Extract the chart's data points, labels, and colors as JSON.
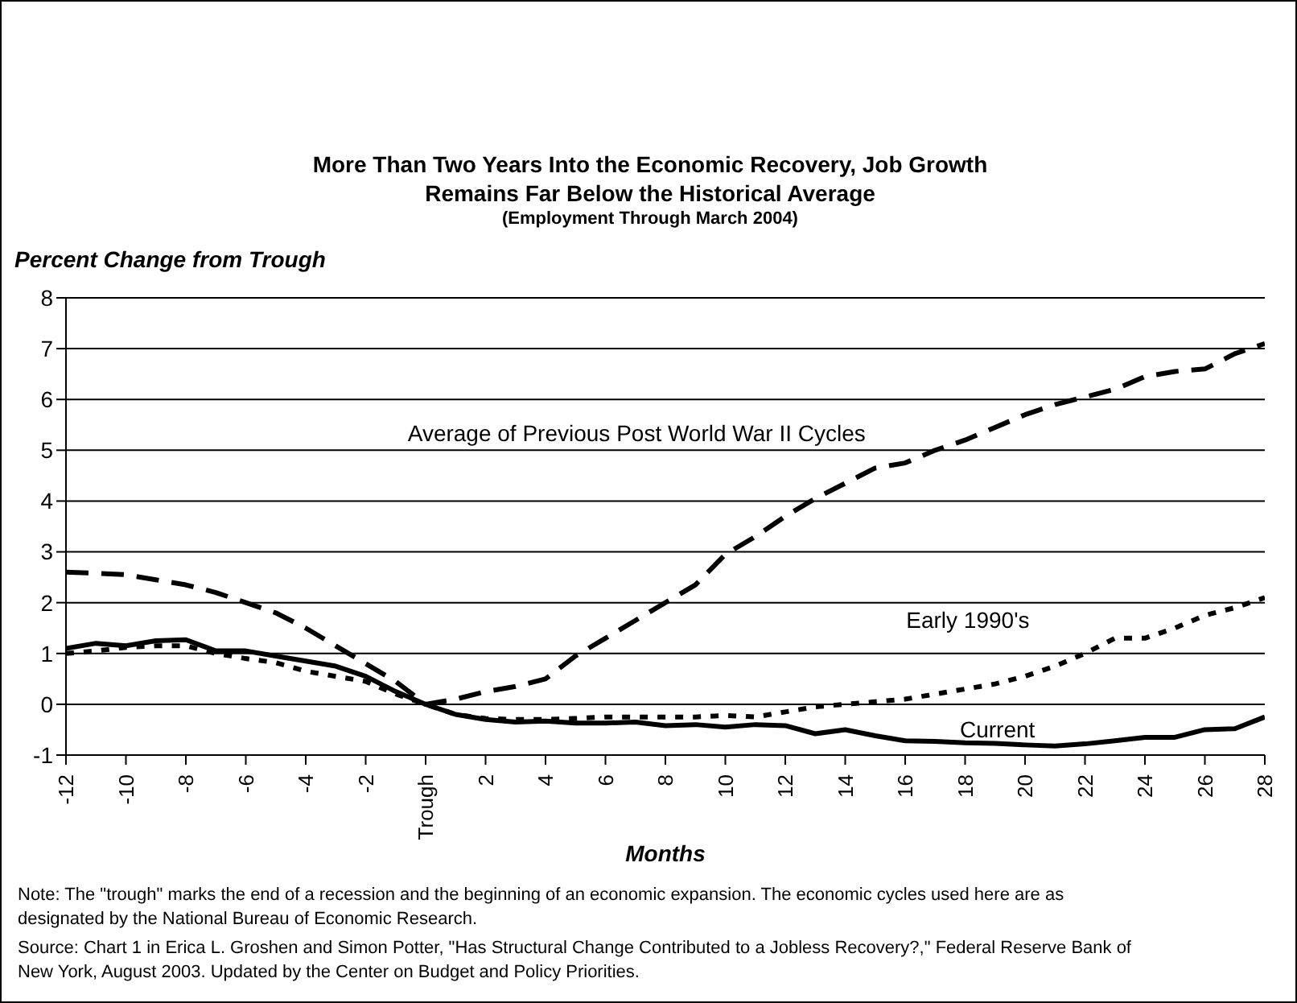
{
  "chart_data": {
    "type": "line",
    "title": "More Than Two Years Into the Economic Recovery, Job Growth Remains Far Below the Historical Average",
    "subtitle": "(Employment Through March 2004)",
    "ylabel": "Percent Change from Trough",
    "xlabel": "Months",
    "x": [
      -12,
      -11,
      -10,
      -9,
      -8,
      -7,
      -6,
      -5,
      -4,
      -3,
      -2,
      -1,
      0,
      1,
      2,
      3,
      4,
      5,
      6,
      7,
      8,
      9,
      10,
      11,
      12,
      13,
      14,
      15,
      16,
      17,
      18,
      19,
      20,
      21,
      22,
      23,
      24,
      25,
      26,
      27,
      28
    ],
    "series": [
      {
        "name": "Average of Previous Post World War II Cycles",
        "color": "#000000",
        "line_style": "dashed",
        "values": [
          2.6,
          2.58,
          2.55,
          2.45,
          2.35,
          2.2,
          2.0,
          1.8,
          1.5,
          1.15,
          0.8,
          0.45,
          0,
          0.1,
          0.25,
          0.35,
          0.5,
          0.95,
          1.3,
          1.65,
          2.0,
          2.35,
          2.95,
          3.3,
          3.7,
          4.05,
          4.35,
          4.65,
          4.75,
          5.0,
          5.2,
          5.45,
          5.7,
          5.9,
          6.05,
          6.2,
          6.45,
          6.55,
          6.6,
          6.9,
          7.1
        ]
      },
      {
        "name": "Early 1990's",
        "color": "#000000",
        "line_style": "dotted",
        "values": [
          1.0,
          1.05,
          1.12,
          1.15,
          1.15,
          1.0,
          0.9,
          0.82,
          0.65,
          0.55,
          0.45,
          0.2,
          0,
          -0.2,
          -0.28,
          -0.3,
          -0.3,
          -0.28,
          -0.25,
          -0.25,
          -0.25,
          -0.25,
          -0.22,
          -0.25,
          -0.15,
          -0.05,
          0.0,
          0.05,
          0.1,
          0.2,
          0.3,
          0.4,
          0.55,
          0.75,
          1.0,
          1.3,
          1.3,
          1.5,
          1.75,
          1.9,
          2.1
        ]
      },
      {
        "name": "Current",
        "color": "#000000",
        "line_style": "solid",
        "values": [
          1.1,
          1.2,
          1.15,
          1.25,
          1.27,
          1.05,
          1.05,
          0.95,
          0.85,
          0.75,
          0.55,
          0.25,
          0,
          -0.2,
          -0.3,
          -0.35,
          -0.33,
          -0.37,
          -0.37,
          -0.35,
          -0.42,
          -0.4,
          -0.45,
          -0.4,
          -0.42,
          -0.58,
          -0.5,
          -0.62,
          -0.72,
          -0.73,
          -0.76,
          -0.77,
          -0.8,
          -0.82,
          -0.78,
          -0.72,
          -0.65,
          -0.65,
          -0.5,
          -0.48,
          -0.25
        ]
      }
    ],
    "xlim": [
      -12,
      28
    ],
    "xticks": [
      -12,
      -10,
      -8,
      -6,
      -4,
      -2,
      {
        "value": 0,
        "label": "Trough"
      },
      2,
      4,
      6,
      8,
      10,
      12,
      14,
      16,
      18,
      20,
      22,
      24,
      26,
      28
    ],
    "ylim": [
      -1,
      8
    ],
    "yticks": [
      -1,
      0,
      1,
      2,
      3,
      4,
      5,
      6,
      7,
      8
    ],
    "grid": "y",
    "annotations": [
      "Note: The \"trough\" marks the end of a recession and the beginning of an economic expansion.  The economic cycles used here are as designated by the National Bureau of Economic Research.",
      "Source: Chart 1 in Erica L. Groshen and Simon Potter, \"Has Structural Change Contributed to a Jobless Recovery?,\" Federal Reserve Bank of New York, August 2003.  Updated by the Center on Budget and Policy Priorities."
    ]
  }
}
